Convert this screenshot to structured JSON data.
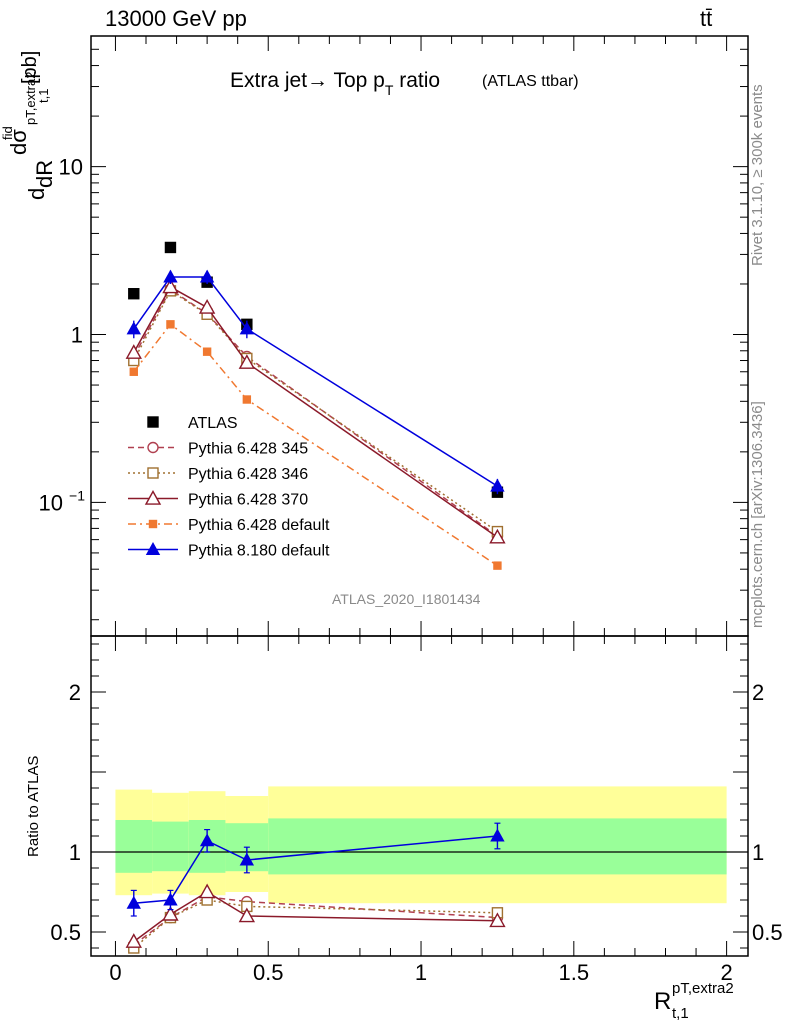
{
  "header": {
    "energy": "13000 GeV pp",
    "process": "tt̄",
    "title_main": "Extra jet→ Top p",
    "title_sub": "T",
    "title_tail": " ratio",
    "title_small": "(ATLAS ttbar)",
    "analysis_tag": "ATLAS_2020_I1801434",
    "side_rivet": "Rivet 3.1.10, ≥ 300k events",
    "side_mcplots": "mcplots.cern.ch [arXiv:1306.3436]"
  },
  "chart_data": [
    {
      "type": "line",
      "yscale": "log",
      "xlim": [
        -0.08,
        2.07
      ],
      "ylim": [
        0.016,
        60
      ],
      "ylabel": {
        "d": "d",
        "sigma": "dσ",
        "sigma_sup": "fid",
        "sigma_sub": "pT,extra2",
        "dR": "dR",
        "dR_sub": "t,1",
        "unit": "[pb]"
      },
      "yticks": [
        {
          "value": 10,
          "label": "10"
        },
        {
          "value": 1,
          "label": "1"
        },
        {
          "value": 0.1,
          "label": "10",
          "sup": "−1"
        }
      ],
      "legend_position": "lower-left",
      "series": [
        {
          "name": "ATLAS",
          "style": "data",
          "color": "#000000",
          "x": [
            0.06,
            0.18,
            0.3,
            0.43,
            1.25
          ],
          "y": [
            1.75,
            3.3,
            2.05,
            1.15,
            0.115
          ]
        },
        {
          "name": "Pythia 6.428 345",
          "style": "open-circle-dashed",
          "color": "#b04050",
          "x": [
            0.06,
            0.18,
            0.3,
            0.43,
            1.25
          ],
          "y": [
            0.74,
            1.85,
            1.33,
            0.74,
            0.063
          ]
        },
        {
          "name": "Pythia 6.428 346",
          "style": "open-square-dotted",
          "color": "#a07030",
          "x": [
            0.06,
            0.18,
            0.3,
            0.43,
            1.25
          ],
          "y": [
            0.7,
            1.82,
            1.32,
            0.72,
            0.067
          ]
        },
        {
          "name": "Pythia 6.428 370",
          "style": "open-triangle-solid",
          "color": "#8b1a2a",
          "x": [
            0.06,
            0.18,
            0.3,
            0.43,
            1.25
          ],
          "y": [
            0.78,
            1.92,
            1.45,
            0.68,
            0.062
          ]
        },
        {
          "name": "Pythia 6.428 default",
          "style": "filled-square-dashdot",
          "color": "#f07830",
          "x": [
            0.06,
            0.18,
            0.3,
            0.43,
            1.25
          ],
          "y": [
            0.6,
            1.15,
            0.79,
            0.41,
            0.042
          ]
        },
        {
          "name": "Pythia 8.180 default",
          "style": "filled-triangle-solid",
          "color": "#0000dd",
          "x": [
            0.06,
            0.18,
            0.3,
            0.43,
            1.25
          ],
          "y": [
            1.08,
            2.2,
            2.2,
            1.08,
            0.125
          ],
          "yerr": [
            0.13,
            0.2,
            0.2,
            0.13,
            0.013
          ]
        }
      ]
    },
    {
      "type": "line",
      "ylabel": "Ratio to ATLAS",
      "xlabel": {
        "main": "R",
        "sup": "pT,extra2",
        "sub": "t,1"
      },
      "xlim": [
        -0.08,
        2.07
      ],
      "ylim": [
        0.35,
        2.35
      ],
      "xticks": [
        {
          "value": 0,
          "label": "0"
        },
        {
          "value": 0.5,
          "label": "0.5"
        },
        {
          "value": 1,
          "label": "1"
        },
        {
          "value": 1.5,
          "label": "1.5"
        },
        {
          "value": 2,
          "label": "2"
        }
      ],
      "yticks": [
        {
          "value": 2,
          "label": "2"
        },
        {
          "value": 1,
          "label": "1"
        },
        {
          "value": 0.5,
          "label": "0.5"
        }
      ],
      "reference_line": 1,
      "bands": {
        "bins": [
          {
            "x0": 0.0,
            "x1": 0.12,
            "inner": [
              0.87,
              1.2
            ],
            "outer": [
              0.73,
              1.39
            ]
          },
          {
            "x0": 0.12,
            "x1": 0.24,
            "inner": [
              0.88,
              1.19
            ],
            "outer": [
              0.74,
              1.37
            ]
          },
          {
            "x0": 0.24,
            "x1": 0.36,
            "inner": [
              0.87,
              1.2
            ],
            "outer": [
              0.73,
              1.38
            ]
          },
          {
            "x0": 0.36,
            "x1": 0.5,
            "inner": [
              0.88,
              1.18
            ],
            "outer": [
              0.75,
              1.35
            ]
          },
          {
            "x0": 0.5,
            "x1": 2.0,
            "inner": [
              0.86,
              1.21
            ],
            "outer": [
              0.68,
              1.41
            ]
          }
        ],
        "inner_color": "#99ff99",
        "outer_color": "#ffff99"
      },
      "series": [
        {
          "name": "Pythia 6.428 345",
          "style": "open-circle-dashed",
          "color": "#b04050",
          "x": [
            0.06,
            0.18,
            0.3,
            0.43,
            1.25
          ],
          "y": [
            0.42,
            0.59,
            0.72,
            0.69,
            0.59
          ]
        },
        {
          "name": "Pythia 6.428 346",
          "style": "open-square-dotted",
          "color": "#a07030",
          "x": [
            0.06,
            0.18,
            0.3,
            0.43,
            1.25
          ],
          "y": [
            0.4,
            0.59,
            0.7,
            0.66,
            0.62
          ]
        },
        {
          "name": "Pythia 6.428 370",
          "style": "open-triangle-solid",
          "color": "#8b1a2a",
          "x": [
            0.06,
            0.18,
            0.3,
            0.43,
            1.25
          ],
          "y": [
            0.44,
            0.61,
            0.75,
            0.6,
            0.57
          ]
        },
        {
          "name": "Pythia 8.180 default",
          "style": "filled-triangle-solid",
          "color": "#0000dd",
          "x": [
            0.06,
            0.18,
            0.3,
            0.43,
            1.25
          ],
          "y": [
            0.68,
            0.7,
            1.07,
            0.95,
            1.1
          ],
          "yerr": [
            0.08,
            0.06,
            0.07,
            0.08,
            0.08
          ]
        }
      ]
    }
  ]
}
